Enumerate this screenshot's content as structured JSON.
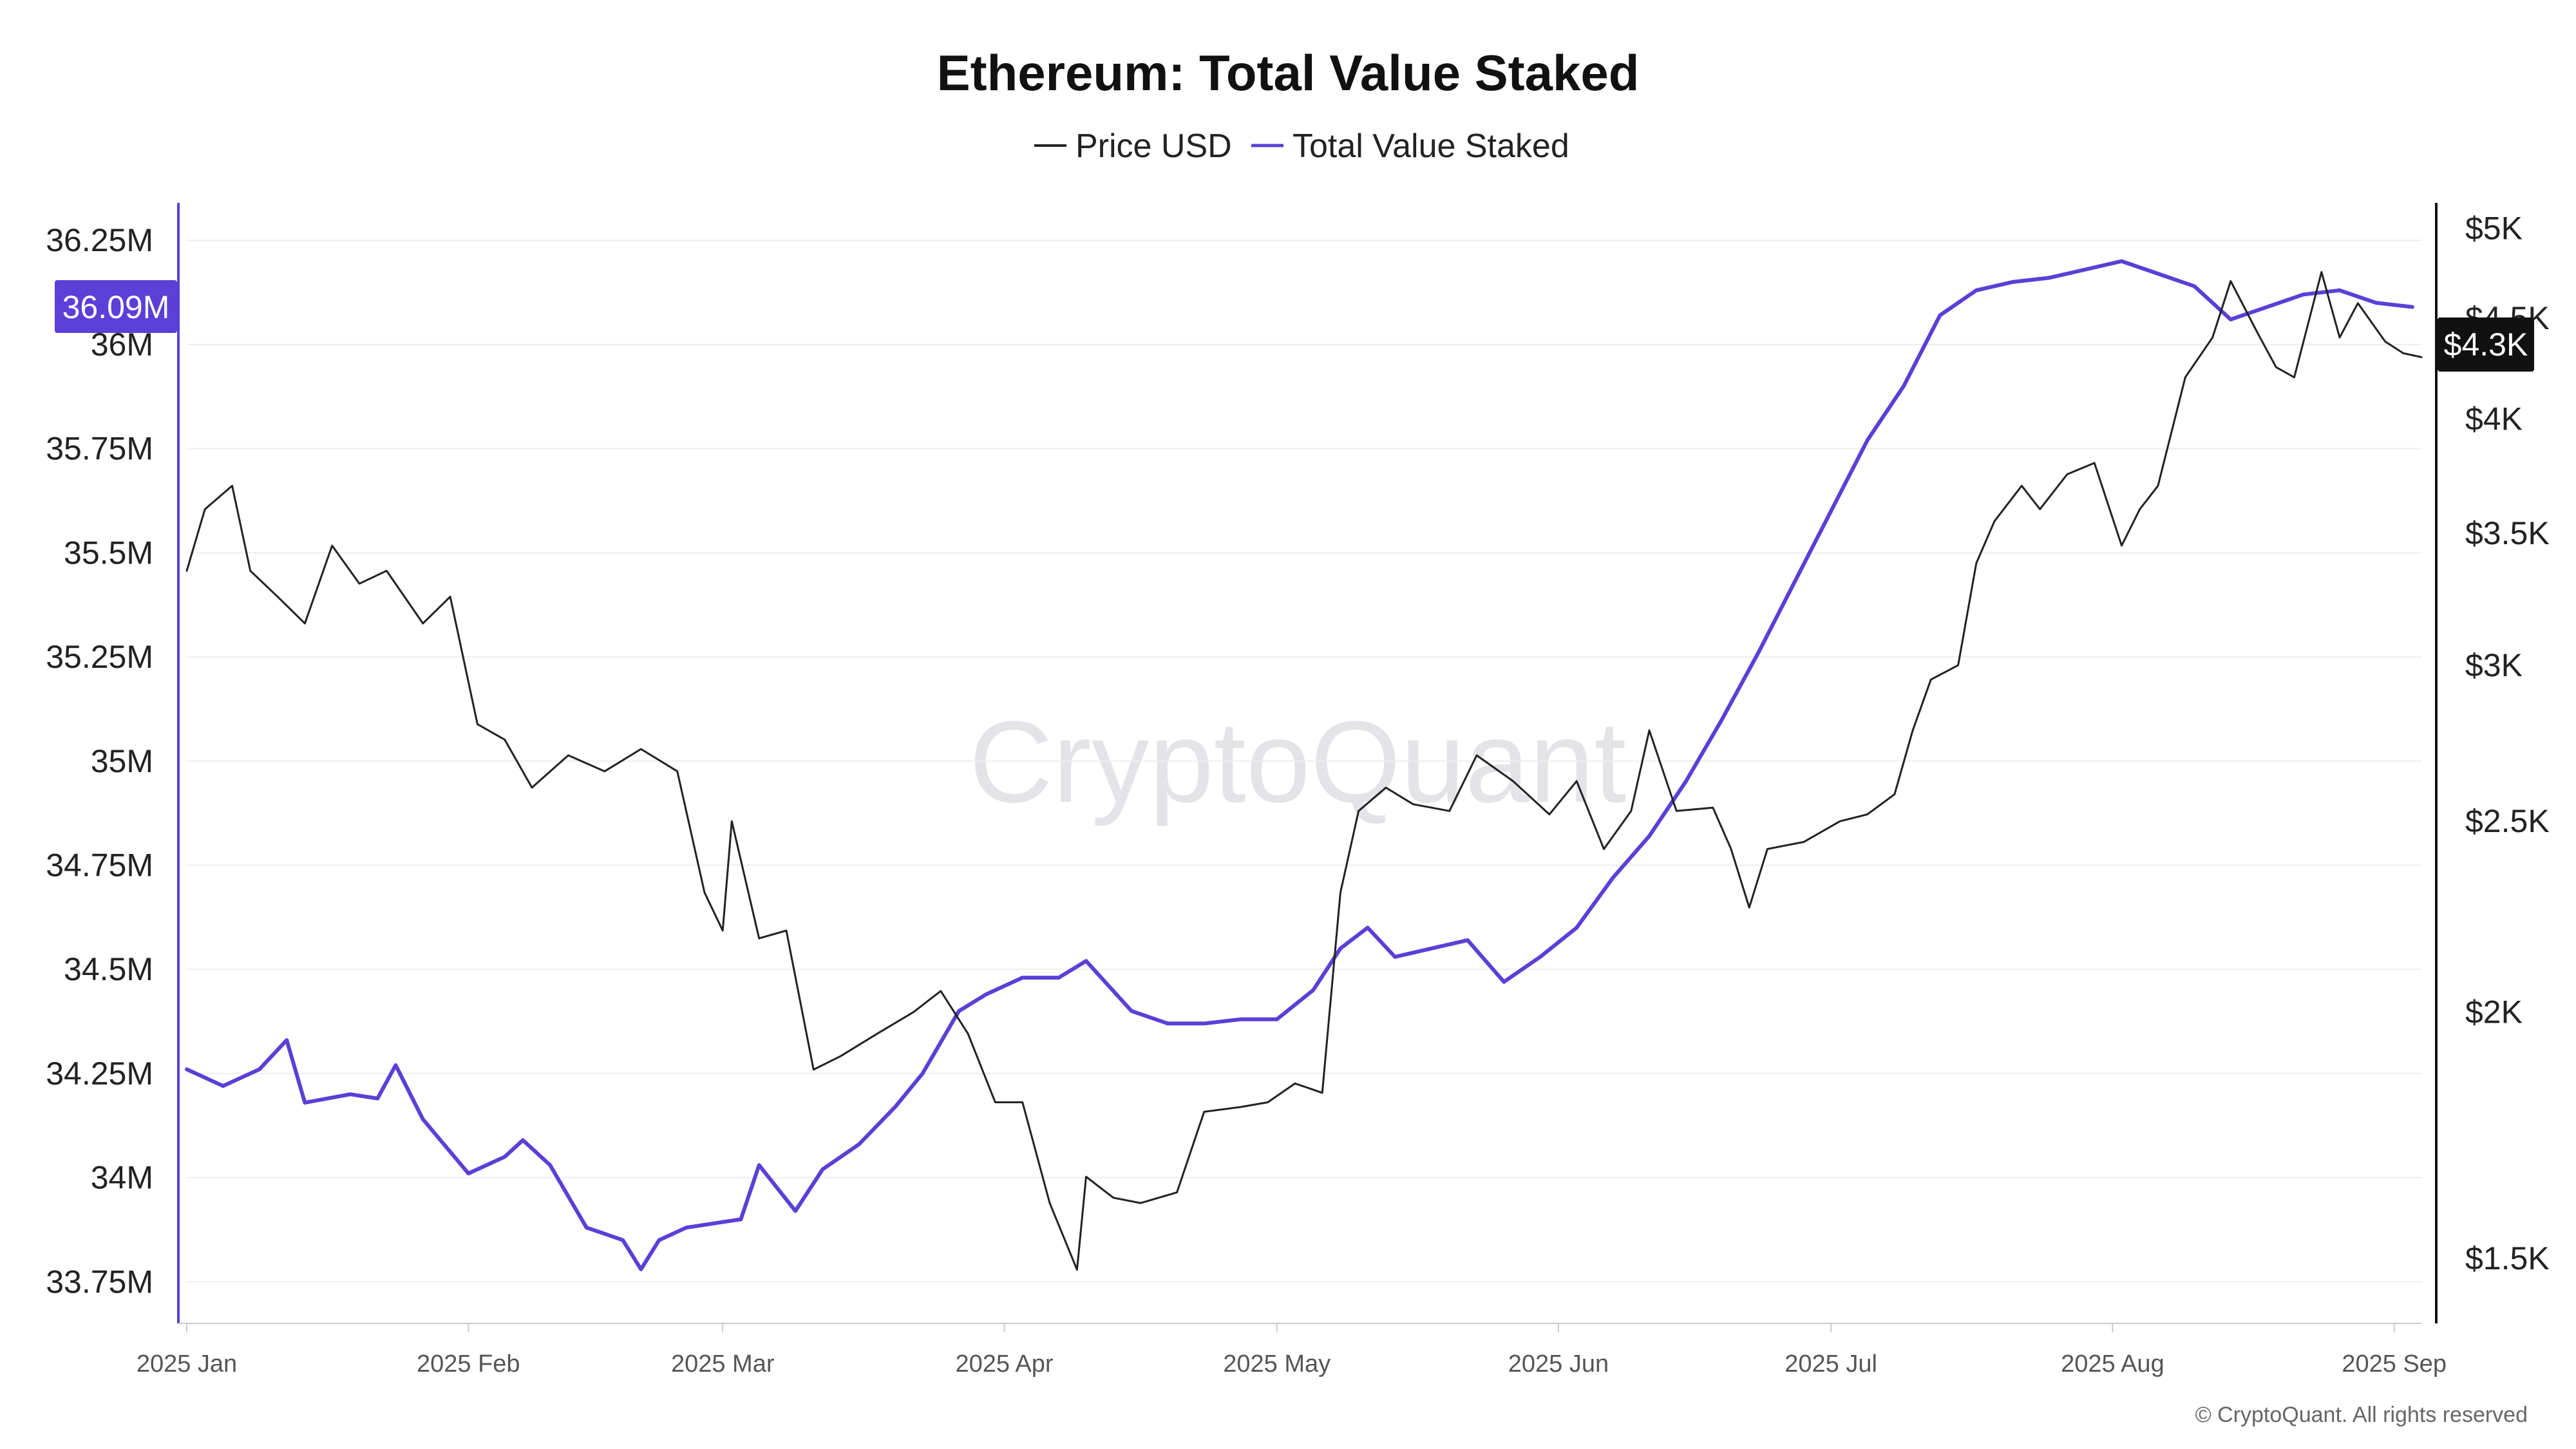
{
  "title": "Ethereum: Total Value Staked",
  "legend": [
    {
      "label": "Price USD",
      "color": "#222222"
    },
    {
      "label": "Total Value Staked",
      "color": "#5b3fd6"
    }
  ],
  "watermark": "CryptoQuant",
  "copyright": "© CryptoQuant. All rights reserved",
  "badges": {
    "left_value": "36.09M",
    "left_color": "#5b3fd6",
    "right_value": "$4.3K",
    "right_color": "#111111"
  },
  "chart_data": {
    "type": "line",
    "title": "Ethereum: Total Value Staked",
    "x_ticks": [
      "2025 Jan",
      "2025 Feb",
      "2025 Mar",
      "2025 Apr",
      "2025 May",
      "2025 Jun",
      "2025 Jul",
      "2025 Aug",
      "2025 Sep"
    ],
    "y_left": {
      "ticks": [
        "33.75M",
        "34M",
        "34.25M",
        "34.5M",
        "34.75M",
        "35M",
        "35.25M",
        "35.5M",
        "35.75M",
        "36M",
        "36.25M"
      ],
      "tick_values": [
        33.75,
        34.0,
        34.25,
        34.5,
        34.75,
        35.0,
        35.25,
        35.5,
        35.75,
        36.0,
        36.25
      ],
      "range": [
        33.65,
        36.34
      ],
      "unit": "M"
    },
    "y_right": {
      "scale": "log",
      "ticks": [
        "$1.5K",
        "$2K",
        "$2.5K",
        "$3K",
        "$3.5K",
        "$4K",
        "$4.5K",
        "$5K"
      ],
      "tick_values": [
        1500,
        2000,
        2500,
        3000,
        3500,
        4000,
        4500,
        5000
      ],
      "range": [
        1390,
        5150
      ]
    },
    "grid": true,
    "legend_position": "top-center",
    "series": [
      {
        "name": "Total Value Staked",
        "axis": "left",
        "color": "#5b3fd6",
        "points": [
          [
            "2025-01-01",
            34.26
          ],
          [
            "2025-01-05",
            34.22
          ],
          [
            "2025-01-09",
            34.26
          ],
          [
            "2025-01-12",
            34.33
          ],
          [
            "2025-01-14",
            34.18
          ],
          [
            "2025-01-19",
            34.2
          ],
          [
            "2025-01-22",
            34.19
          ],
          [
            "2025-01-24",
            34.27
          ],
          [
            "2025-01-27",
            34.14
          ],
          [
            "2025-02-01",
            34.01
          ],
          [
            "2025-02-05",
            34.05
          ],
          [
            "2025-02-07",
            34.09
          ],
          [
            "2025-02-10",
            34.03
          ],
          [
            "2025-02-14",
            33.88
          ],
          [
            "2025-02-18",
            33.85
          ],
          [
            "2025-02-20",
            33.78
          ],
          [
            "2025-02-22",
            33.85
          ],
          [
            "2025-02-25",
            33.88
          ],
          [
            "2025-03-03",
            33.9
          ],
          [
            "2025-03-05",
            34.03
          ],
          [
            "2025-03-09",
            33.92
          ],
          [
            "2025-03-12",
            34.02
          ],
          [
            "2025-03-16",
            34.08
          ],
          [
            "2025-03-20",
            34.17
          ],
          [
            "2025-03-23",
            34.25
          ],
          [
            "2025-03-27",
            34.4
          ],
          [
            "2025-03-30",
            34.44
          ],
          [
            "2025-04-03",
            34.48
          ],
          [
            "2025-04-07",
            34.48
          ],
          [
            "2025-04-10",
            34.52
          ],
          [
            "2025-04-15",
            34.4
          ],
          [
            "2025-04-19",
            34.37
          ],
          [
            "2025-04-23",
            34.37
          ],
          [
            "2025-04-27",
            34.38
          ],
          [
            "2025-05-01",
            34.38
          ],
          [
            "2025-05-05",
            34.45
          ],
          [
            "2025-05-08",
            34.55
          ],
          [
            "2025-05-11",
            34.6
          ],
          [
            "2025-05-14",
            34.53
          ],
          [
            "2025-05-18",
            34.55
          ],
          [
            "2025-05-22",
            34.57
          ],
          [
            "2025-05-26",
            34.47
          ],
          [
            "2025-05-30",
            34.53
          ],
          [
            "2025-06-03",
            34.6
          ],
          [
            "2025-06-07",
            34.72
          ],
          [
            "2025-06-11",
            34.82
          ],
          [
            "2025-06-15",
            34.95
          ],
          [
            "2025-06-19",
            35.1
          ],
          [
            "2025-06-23",
            35.26
          ],
          [
            "2025-06-27",
            35.43
          ],
          [
            "2025-07-01",
            35.6
          ],
          [
            "2025-07-05",
            35.77
          ],
          [
            "2025-07-09",
            35.9
          ],
          [
            "2025-07-13",
            36.07
          ],
          [
            "2025-07-17",
            36.13
          ],
          [
            "2025-07-21",
            36.15
          ],
          [
            "2025-07-25",
            36.16
          ],
          [
            "2025-07-29",
            36.18
          ],
          [
            "2025-08-02",
            36.2
          ],
          [
            "2025-08-06",
            36.17
          ],
          [
            "2025-08-10",
            36.14
          ],
          [
            "2025-08-14",
            36.06
          ],
          [
            "2025-08-18",
            36.09
          ],
          [
            "2025-08-22",
            36.12
          ],
          [
            "2025-08-26",
            36.13
          ],
          [
            "2025-08-30",
            36.1
          ],
          [
            "2025-09-03",
            36.09
          ]
        ]
      },
      {
        "name": "Price USD",
        "axis": "right",
        "color": "#222222",
        "points": [
          [
            "2025-01-01",
            3350
          ],
          [
            "2025-01-03",
            3600
          ],
          [
            "2025-01-06",
            3700
          ],
          [
            "2025-01-08",
            3350
          ],
          [
            "2025-01-11",
            3250
          ],
          [
            "2025-01-14",
            3150
          ],
          [
            "2025-01-17",
            3450
          ],
          [
            "2025-01-20",
            3300
          ],
          [
            "2025-01-23",
            3350
          ],
          [
            "2025-01-27",
            3150
          ],
          [
            "2025-01-30",
            3250
          ],
          [
            "2025-02-02",
            2800
          ],
          [
            "2025-02-05",
            2750
          ],
          [
            "2025-02-08",
            2600
          ],
          [
            "2025-02-12",
            2700
          ],
          [
            "2025-02-16",
            2650
          ],
          [
            "2025-02-20",
            2720
          ],
          [
            "2025-02-24",
            2650
          ],
          [
            "2025-02-27",
            2300
          ],
          [
            "2025-03-01",
            2200
          ],
          [
            "2025-03-02",
            2500
          ],
          [
            "2025-03-05",
            2180
          ],
          [
            "2025-03-08",
            2200
          ],
          [
            "2025-03-11",
            1870
          ],
          [
            "2025-03-14",
            1900
          ],
          [
            "2025-03-18",
            1950
          ],
          [
            "2025-03-22",
            2000
          ],
          [
            "2025-03-25",
            2050
          ],
          [
            "2025-03-28",
            1950
          ],
          [
            "2025-03-31",
            1800
          ],
          [
            "2025-04-03",
            1800
          ],
          [
            "2025-04-06",
            1600
          ],
          [
            "2025-04-09",
            1480
          ],
          [
            "2025-04-10",
            1650
          ],
          [
            "2025-04-13",
            1610
          ],
          [
            "2025-04-16",
            1600
          ],
          [
            "2025-04-20",
            1620
          ],
          [
            "2025-04-23",
            1780
          ],
          [
            "2025-04-27",
            1790
          ],
          [
            "2025-04-30",
            1800
          ],
          [
            "2025-05-03",
            1840
          ],
          [
            "2025-05-06",
            1820
          ],
          [
            "2025-05-08",
            2300
          ],
          [
            "2025-05-10",
            2530
          ],
          [
            "2025-05-13",
            2600
          ],
          [
            "2025-05-16",
            2550
          ],
          [
            "2025-05-20",
            2530
          ],
          [
            "2025-05-23",
            2700
          ],
          [
            "2025-05-27",
            2620
          ],
          [
            "2025-05-31",
            2520
          ],
          [
            "2025-06-03",
            2620
          ],
          [
            "2025-06-06",
            2420
          ],
          [
            "2025-06-09",
            2530
          ],
          [
            "2025-06-11",
            2780
          ],
          [
            "2025-06-14",
            2530
          ],
          [
            "2025-06-18",
            2540
          ],
          [
            "2025-06-20",
            2420
          ],
          [
            "2025-06-22",
            2260
          ],
          [
            "2025-06-24",
            2420
          ],
          [
            "2025-06-28",
            2440
          ],
          [
            "2025-07-02",
            2500
          ],
          [
            "2025-07-05",
            2520
          ],
          [
            "2025-07-08",
            2580
          ],
          [
            "2025-07-10",
            2780
          ],
          [
            "2025-07-12",
            2950
          ],
          [
            "2025-07-15",
            3000
          ],
          [
            "2025-07-17",
            3380
          ],
          [
            "2025-07-19",
            3550
          ],
          [
            "2025-07-22",
            3700
          ],
          [
            "2025-07-24",
            3600
          ],
          [
            "2025-07-27",
            3750
          ],
          [
            "2025-07-30",
            3800
          ],
          [
            "2025-08-02",
            3450
          ],
          [
            "2025-08-04",
            3600
          ],
          [
            "2025-08-06",
            3700
          ],
          [
            "2025-08-09",
            4200
          ],
          [
            "2025-08-12",
            4400
          ],
          [
            "2025-08-14",
            4700
          ],
          [
            "2025-08-17",
            4420
          ],
          [
            "2025-08-19",
            4250
          ],
          [
            "2025-08-21",
            4200
          ],
          [
            "2025-08-24",
            4750
          ],
          [
            "2025-08-26",
            4400
          ],
          [
            "2025-08-28",
            4580
          ],
          [
            "2025-08-31",
            4380
          ],
          [
            "2025-09-02",
            4320
          ],
          [
            "2025-09-04",
            4300
          ]
        ]
      }
    ]
  }
}
